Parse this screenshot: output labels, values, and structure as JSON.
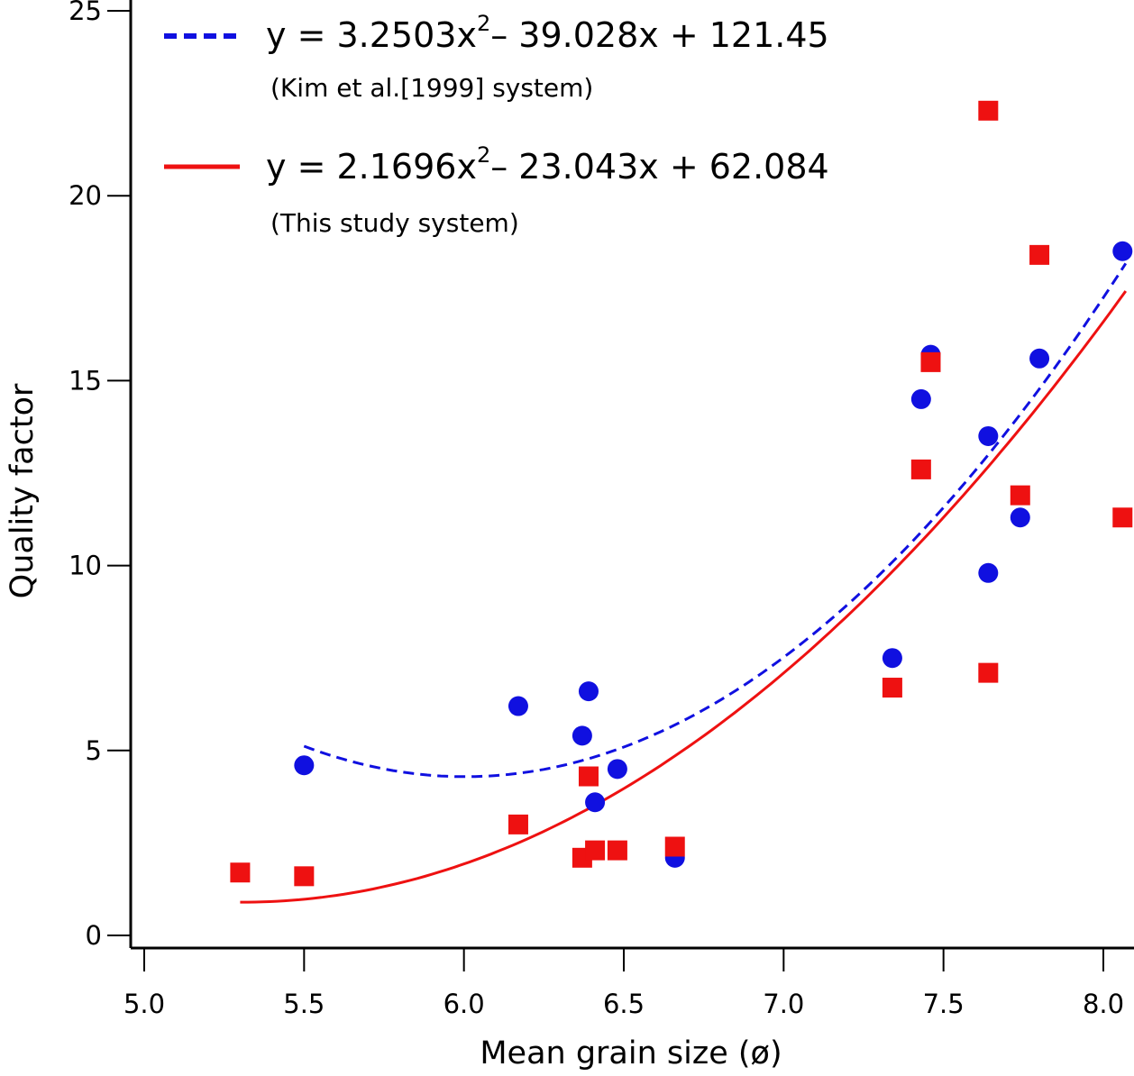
{
  "chart_data": {
    "type": "scatter",
    "xlabel": "Mean grain size (ø)",
    "ylabel": "Quality factor",
    "xlim": [
      5.0,
      8.07
    ],
    "ylim": [
      0,
      25
    ],
    "x_ticks": [
      5.0,
      5.5,
      6.0,
      6.5,
      7.0,
      7.5,
      8.0
    ],
    "x_tick_labels": [
      "5.0",
      "5.5",
      "6.0",
      "6.5",
      "7.0",
      "7.5",
      "8.0"
    ],
    "y_ticks": [
      0,
      5,
      10,
      15,
      20,
      25
    ],
    "y_tick_labels": [
      "0",
      "5",
      "10",
      "15",
      "20",
      "25"
    ],
    "series": [
      {
        "name": "Kim et al.[1999] system",
        "color": "#1010e0",
        "marker": "circle",
        "points": [
          [
            5.5,
            4.6
          ],
          [
            6.17,
            6.2
          ],
          [
            6.37,
            5.4
          ],
          [
            6.39,
            6.6
          ],
          [
            6.41,
            3.6
          ],
          [
            6.48,
            4.5
          ],
          [
            6.66,
            2.1
          ],
          [
            7.34,
            7.5
          ],
          [
            7.43,
            14.5
          ],
          [
            7.46,
            15.7
          ],
          [
            7.64,
            13.5
          ],
          [
            7.64,
            9.8
          ],
          [
            7.74,
            11.3
          ],
          [
            7.8,
            15.6
          ],
          [
            8.06,
            18.5
          ]
        ],
        "fit": {
          "equation_prefix": "y = 3.2503x",
          "superscript": "2",
          "equation_suffix": "– 39.028x + 121.45",
          "label": "(Kim et al.[1999] system)",
          "coefficients": [
            3.2503,
            -39.028,
            121.45
          ],
          "x_range": [
            5.5,
            8.07
          ],
          "style": "dashed"
        }
      },
      {
        "name": "This study system",
        "color": "#ee1111",
        "marker": "square",
        "points": [
          [
            5.3,
            1.7
          ],
          [
            5.5,
            1.6
          ],
          [
            6.17,
            3.0
          ],
          [
            6.37,
            2.1
          ],
          [
            6.39,
            4.3
          ],
          [
            6.41,
            2.3
          ],
          [
            6.48,
            2.3
          ],
          [
            6.66,
            2.4
          ],
          [
            7.34,
            6.7
          ],
          [
            7.43,
            12.6
          ],
          [
            7.46,
            15.5
          ],
          [
            7.64,
            22.3
          ],
          [
            7.64,
            7.1
          ],
          [
            7.74,
            11.9
          ],
          [
            7.8,
            18.4
          ],
          [
            8.06,
            11.3
          ]
        ],
        "fit": {
          "equation_prefix": "y = 2.1696x",
          "superscript": "2",
          "equation_suffix": "– 23.043x + 62.084",
          "label": "(This study system)",
          "coefficients": [
            2.1696,
            -23.043,
            62.084
          ],
          "x_range": [
            5.3,
            8.07
          ],
          "style": "solid"
        }
      }
    ]
  }
}
